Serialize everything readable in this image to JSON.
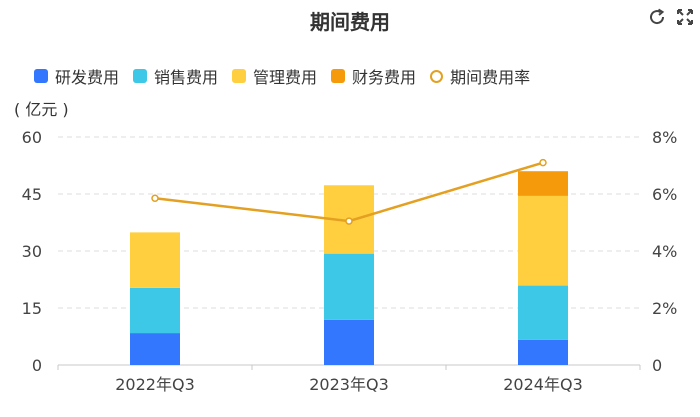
{
  "toolbar": {
    "refresh_icon": "refresh-icon",
    "fullscreen_icon": "fullscreen-icon"
  },
  "chart_data": {
    "type": "bar",
    "title": "期间费用",
    "unit_label": "( 亿元 )",
    "categories": [
      "2022年Q3",
      "2023年Q3",
      "2024年Q3"
    ],
    "stacked": true,
    "series": [
      {
        "name": "研发费用",
        "type": "bar",
        "axis": "left",
        "color": "#3377ff",
        "values": [
          8.4,
          11.9,
          6.6
        ]
      },
      {
        "name": "销售费用",
        "type": "bar",
        "axis": "left",
        "color": "#3cc8e6",
        "values": [
          11.9,
          17.4,
          14.3
        ]
      },
      {
        "name": "管理费用",
        "type": "bar",
        "axis": "left",
        "color": "#ffcf40",
        "values": [
          14.6,
          18.0,
          23.6
        ]
      },
      {
        "name": "财务费用",
        "type": "bar",
        "axis": "left",
        "color": "#f59a0a",
        "values": [
          0,
          0,
          6.5
        ]
      },
      {
        "name": "期间费用率",
        "type": "line",
        "axis": "right",
        "color": "#e3a021",
        "values": [
          5.85,
          5.05,
          7.1
        ]
      }
    ],
    "y_left": {
      "min": 0,
      "max": 60,
      "ticks": [
        0,
        15,
        30,
        45,
        60
      ]
    },
    "y_right": {
      "min": 0,
      "max": 8,
      "ticks": [
        "0",
        "2%",
        "4%",
        "6%",
        "8%"
      ]
    },
    "grid": true,
    "legend_position": "top-left"
  }
}
